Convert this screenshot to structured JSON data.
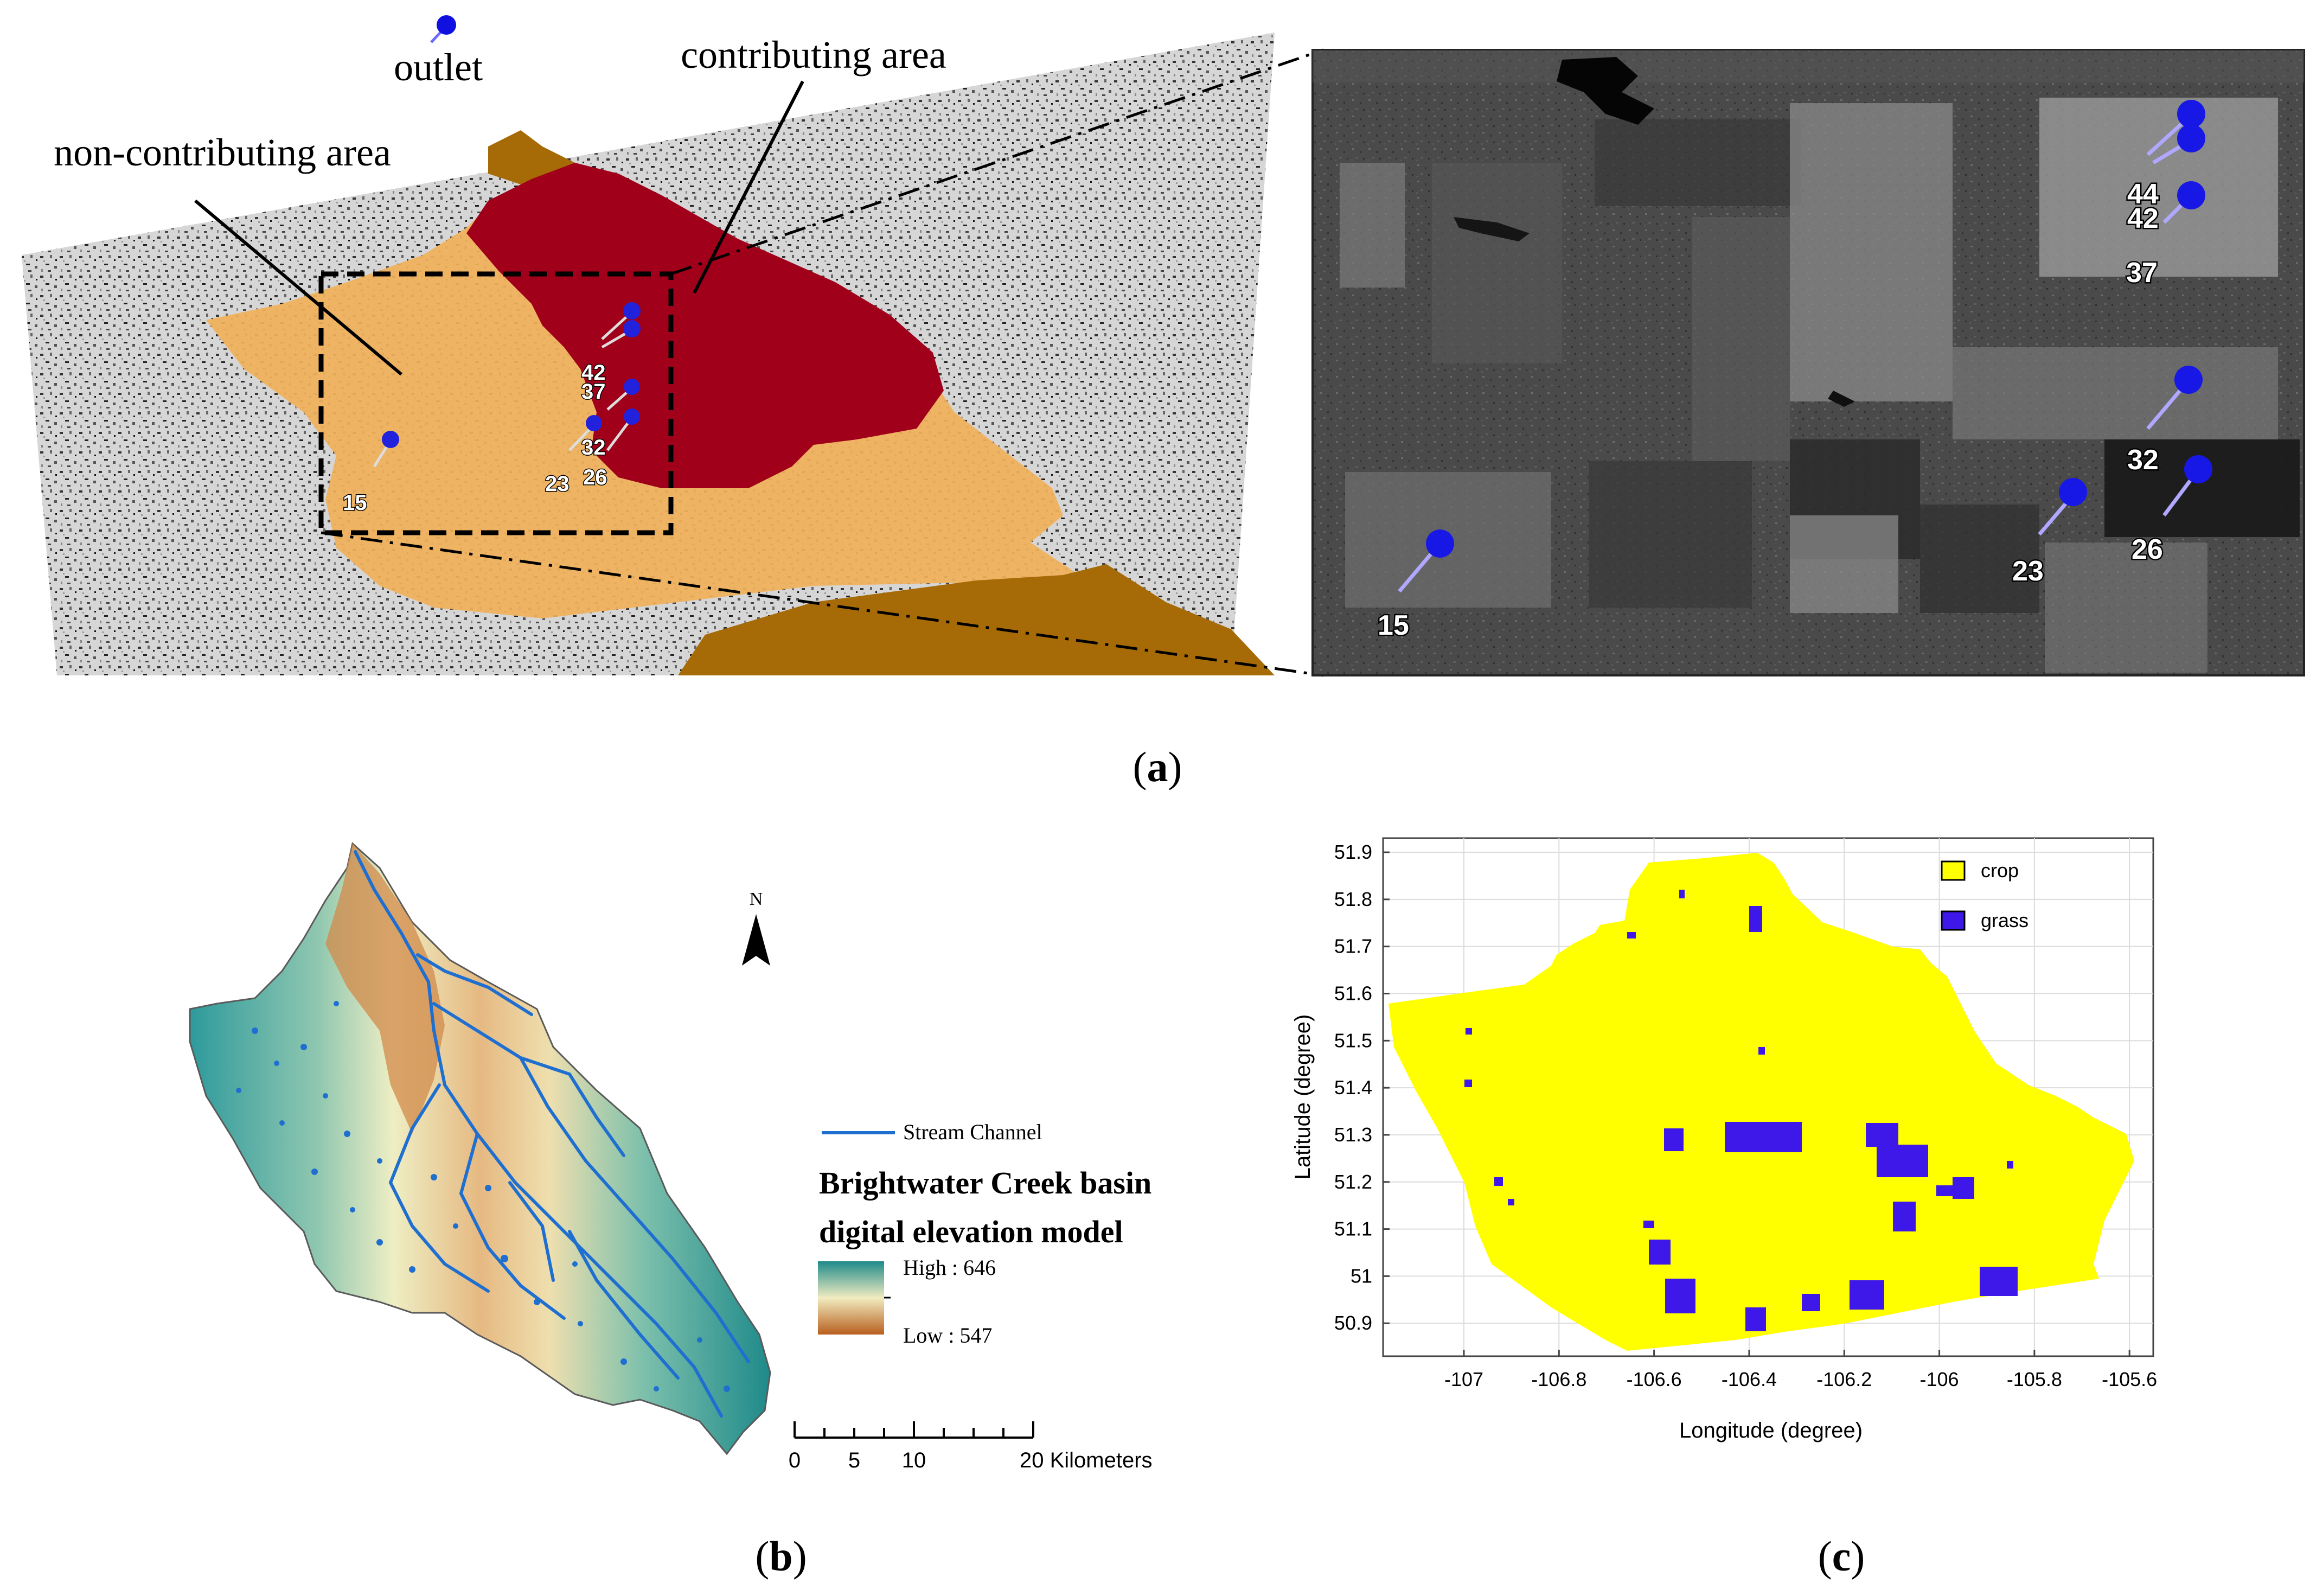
{
  "panel_a": {
    "labels": {
      "outlet": "outlet",
      "contributing": "contributing area",
      "non_contributing": "non-contributing area"
    },
    "sites": [
      "15",
      "23",
      "26",
      "32",
      "37",
      "42",
      "44"
    ],
    "caption_open": "(",
    "caption_letter": "a",
    "caption_close": ")"
  },
  "panel_b": {
    "north": "N",
    "legend_stream": "Stream Channel",
    "title_line1": "Brightwater Creek basin",
    "title_line2": "digital elevation model",
    "high": "High : 646",
    "low": "Low : 547",
    "scale_ticks": [
      "0",
      "5",
      "10",
      "20 Kilometers"
    ],
    "caption_open": "(",
    "caption_letter": "b",
    "caption_close": ")",
    "colors": {
      "high": "#1f8a8a",
      "mid": "#f1ecc0",
      "low": "#b85f1e",
      "stream": "#1f6fd0"
    }
  },
  "panel_c": {
    "chart_data": {
      "type": "map",
      "xlabel": "Longitude (degree)",
      "ylabel": "Latitude (degree)",
      "xlim": [
        -107.17,
        -105.55
      ],
      "ylim": [
        50.83,
        51.93
      ],
      "xticks": [
        "-107",
        "-106.8",
        "-106.6",
        "-106.4",
        "-106.2",
        "-106",
        "-105.8",
        "-105.6"
      ],
      "yticks": [
        "50.9",
        "51",
        "51.1",
        "51.2",
        "51.3",
        "51.4",
        "51.5",
        "51.6",
        "51.7",
        "51.8",
        "51.9"
      ],
      "legend": [
        {
          "name": "crop",
          "color": "#ffff00"
        },
        {
          "name": "grass",
          "color": "#3d18e8"
        }
      ],
      "grid": true
    },
    "caption_open": "(",
    "caption_letter": "c",
    "caption_close": ")"
  }
}
